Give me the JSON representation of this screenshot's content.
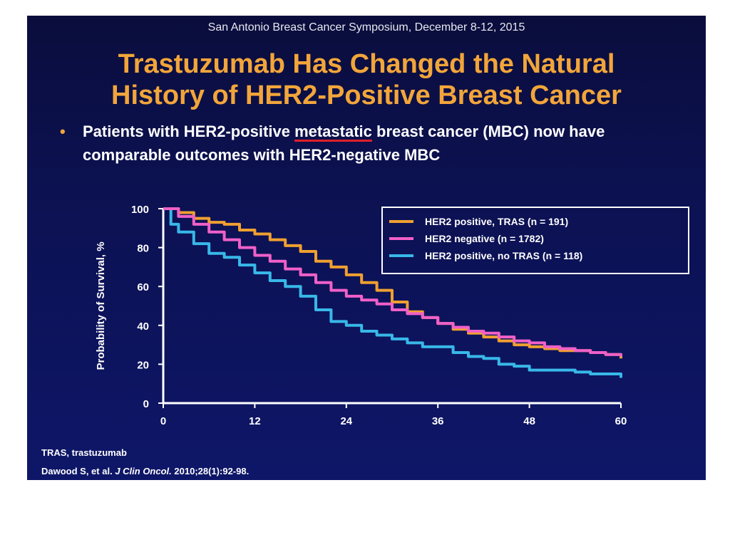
{
  "conference": "San Antonio Breast Cancer Symposium, December 8-12, 2015",
  "title_line1": "Trastuzumab Has Changed the Natural",
  "title_line2": "History of HER2-Positive Breast Cancer",
  "bullet": {
    "marker": "•",
    "text_before": "Patients with HER2-positive ",
    "highlight": "metastatic",
    "text_after": " breast cancer (MBC) now have comparable outcomes with HER2-negative MBC"
  },
  "footnote_abbrev": "TRAS, trastuzumab",
  "citation": {
    "authors": "Dawood S, et al.",
    "journal": "J Clin Oncol.",
    "details": "2010;28(1):92-98."
  },
  "colors": {
    "her2_pos_tras": "#f0a030",
    "her2_neg": "#f060c8",
    "her2_pos_no_tras": "#38b8e8"
  },
  "chart_data": {
    "type": "line",
    "xlabel": "",
    "ylabel": "Probability of Survival, %",
    "xlim": [
      0,
      60
    ],
    "ylim": [
      0,
      100
    ],
    "x_ticks": [
      0,
      12,
      24,
      36,
      48,
      60
    ],
    "y_ticks": [
      0,
      20,
      40,
      60,
      80,
      100
    ],
    "legend_position": "top-right",
    "series": [
      {
        "name": "HER2 positive, TRAS (n = 191)",
        "color": "#f0a030",
        "x": [
          0,
          2,
          4,
          6,
          8,
          10,
          12,
          14,
          16,
          18,
          20,
          22,
          24,
          26,
          28,
          30,
          32,
          34,
          36,
          38,
          40,
          42,
          44,
          46,
          48,
          50,
          52,
          54,
          56,
          58,
          60
        ],
        "y": [
          100,
          98,
          95,
          93,
          92,
          89,
          87,
          84,
          81,
          78,
          73,
          70,
          66,
          62,
          58,
          52,
          47,
          44,
          41,
          38,
          36,
          34,
          32,
          30,
          29,
          28,
          27,
          27,
          26,
          25,
          23
        ]
      },
      {
        "name": "HER2 negative (n = 1782)",
        "color": "#f060c8",
        "x": [
          0,
          2,
          4,
          6,
          8,
          10,
          12,
          14,
          16,
          18,
          20,
          22,
          24,
          26,
          28,
          30,
          32,
          34,
          36,
          38,
          40,
          42,
          44,
          46,
          48,
          50,
          52,
          54,
          56,
          58,
          60
        ],
        "y": [
          100,
          96,
          92,
          88,
          84,
          80,
          76,
          73,
          69,
          66,
          62,
          58,
          55,
          53,
          51,
          48,
          46,
          44,
          41,
          39,
          37,
          36,
          34,
          32,
          31,
          29,
          28,
          27,
          26,
          25,
          24
        ]
      },
      {
        "name": "HER2 positive, no TRAS (n = 118)",
        "color": "#38b8e8",
        "x": [
          0,
          1,
          2,
          4,
          6,
          8,
          10,
          12,
          14,
          16,
          18,
          20,
          22,
          24,
          26,
          28,
          30,
          32,
          34,
          36,
          38,
          40,
          42,
          44,
          46,
          48,
          50,
          52,
          54,
          56,
          58,
          60
        ],
        "y": [
          100,
          92,
          88,
          82,
          77,
          75,
          71,
          67,
          63,
          60,
          55,
          48,
          42,
          40,
          37,
          35,
          33,
          31,
          29,
          29,
          26,
          24,
          23,
          20,
          19,
          17,
          17,
          17,
          16,
          15,
          15,
          13
        ]
      }
    ]
  }
}
